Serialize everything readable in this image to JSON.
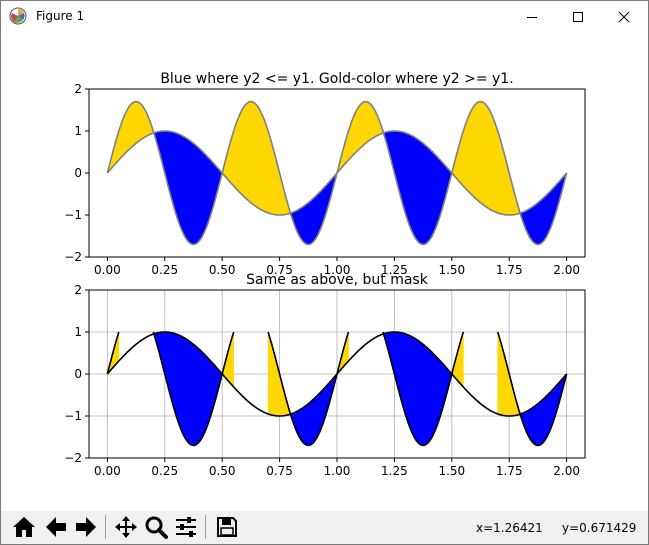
{
  "window": {
    "title": "Figure 1",
    "icons": {
      "app": "matplotlib-figure-icon",
      "minimize": "minimize-icon",
      "maximize": "maximize-icon",
      "close": "close-icon"
    }
  },
  "toolbar": {
    "items": [
      {
        "name": "home-button",
        "icon": "home-icon"
      },
      {
        "name": "back-button",
        "icon": "arrow-left-icon"
      },
      {
        "name": "forward-button",
        "icon": "arrow-right-icon"
      },
      {
        "name": "pan-button",
        "icon": "move-icon"
      },
      {
        "name": "zoom-button",
        "icon": "zoom-icon"
      },
      {
        "name": "configure-subplots-button",
        "icon": "sliders-icon"
      },
      {
        "name": "save-button",
        "icon": "save-icon"
      }
    ],
    "coords": {
      "x": "x=1.26421",
      "y": "y=0.671429"
    }
  },
  "chart_data": [
    {
      "type": "area",
      "title": "Blue where y2 <= y1. Gold-color where y2 >= y1.",
      "xlabel": "",
      "ylabel": "",
      "xlim": [
        -0.08,
        2.08
      ],
      "ylim": [
        -2,
        2
      ],
      "xticks": [
        "0.00",
        "0.25",
        "0.50",
        "0.75",
        "1.00",
        "1.25",
        "1.50",
        "1.75",
        "2.00"
      ],
      "yticks": [
        "2",
        "1",
        "0",
        "−1",
        "−2"
      ],
      "grid": false,
      "series": [
        {
          "formula": "y1 = sin(2πx)",
          "x_range": [
            0,
            2
          ],
          "color": "#808080"
        },
        {
          "formula": "y2 = 1.7 sin(4πx)",
          "x_range": [
            0,
            2
          ],
          "color": "#808080"
        }
      ],
      "fill_colors": {
        "y2_le_y1": "#0000ff",
        "y2_ge_y1": "#ffd700"
      }
    },
    {
      "type": "area",
      "title": "Same as above, but mask",
      "xlabel": "",
      "ylabel": "",
      "xlim": [
        -0.08,
        2.08
      ],
      "ylim": [
        -2,
        2
      ],
      "xticks": [
        "0.00",
        "0.25",
        "0.50",
        "0.75",
        "1.00",
        "1.25",
        "1.50",
        "1.75",
        "2.00"
      ],
      "yticks": [
        "2",
        "1",
        "0",
        "−1",
        "−2"
      ],
      "grid": true,
      "mask": "y2 masked where y2 > 1.0",
      "series": [
        {
          "formula": "y1 = sin(2πx)",
          "x_range": [
            0,
            2
          ],
          "color": "#000000"
        },
        {
          "formula": "y2 = 1.7 sin(4πx), masked",
          "x_range": [
            0,
            2
          ],
          "color": "#000000"
        }
      ],
      "fill_colors": {
        "y2_le_y1": "#0000ff",
        "y2_ge_y1": "#ffd700"
      }
    }
  ]
}
